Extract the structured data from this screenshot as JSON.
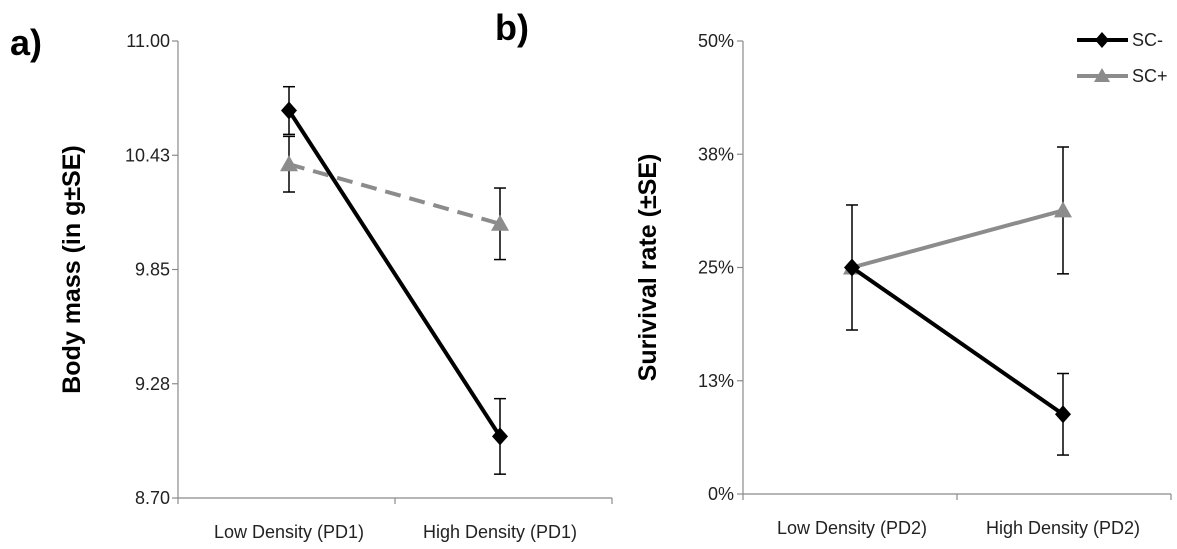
{
  "chart_data": [
    {
      "type": "line",
      "panel_label": "a)",
      "ylabel": "Body mass (in g±SE)",
      "xlabel": "",
      "ylim": [
        8.7,
        11.0
      ],
      "yticks": [
        "8.70",
        "9.28",
        "9.85",
        "10.43",
        "11.00"
      ],
      "categories": [
        "Low Density (PD1)",
        "High Density (PD1)"
      ],
      "series": [
        {
          "name": "SC-",
          "values": [
            10.65,
            9.01
          ],
          "errors": [
            0.12,
            0.19
          ],
          "color": "#000000",
          "marker": "diamond",
          "dash": "solid"
        },
        {
          "name": "SC+",
          "values": [
            10.38,
            10.08
          ],
          "errors": [
            0.14,
            0.18
          ],
          "color": "#8c8c8c",
          "marker": "triangle",
          "dash": "dashed"
        }
      ],
      "grid": false
    },
    {
      "type": "line",
      "panel_label": "b)",
      "ylabel": "Surivival rate (±SE)",
      "xlabel": "",
      "ylim": [
        0,
        50
      ],
      "yticks": [
        "0%",
        "13%",
        "25%",
        "38%",
        "50%"
      ],
      "categories": [
        "Low Density (PD2)",
        "High Density (PD2)"
      ],
      "series": [
        {
          "name": "SC-",
          "values": [
            25.0,
            8.8
          ],
          "errors": [
            0.0,
            4.5
          ],
          "color": "#000000",
          "marker": "diamond",
          "dash": "solid"
        },
        {
          "name": "SC+",
          "values": [
            25.0,
            31.3
          ],
          "errors": [
            6.9,
            7.0
          ],
          "color": "#8c8c8c",
          "marker": "triangle",
          "dash": "solid"
        }
      ],
      "legend": {
        "position": "top-right",
        "entries": [
          "SC-",
          "SC+"
        ]
      },
      "grid": false
    }
  ]
}
